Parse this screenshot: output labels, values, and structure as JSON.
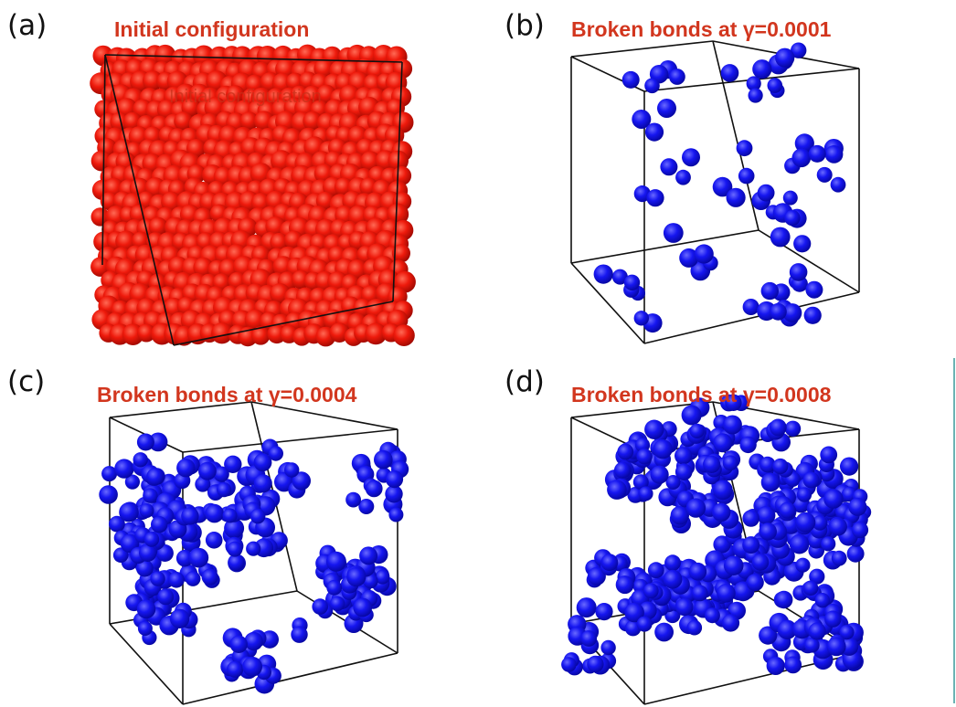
{
  "panels": [
    {
      "label": "(a)",
      "title": "Initial configuration",
      "overlay": "Initial configuration"
    },
    {
      "label": "(b)",
      "title": "Broken bonds at γ=0.0001"
    },
    {
      "label": "(c)",
      "title": "Broken bonds at γ=0.0004"
    },
    {
      "label": "(d)",
      "title": "Broken bonds at γ=0.0008"
    }
  ]
}
